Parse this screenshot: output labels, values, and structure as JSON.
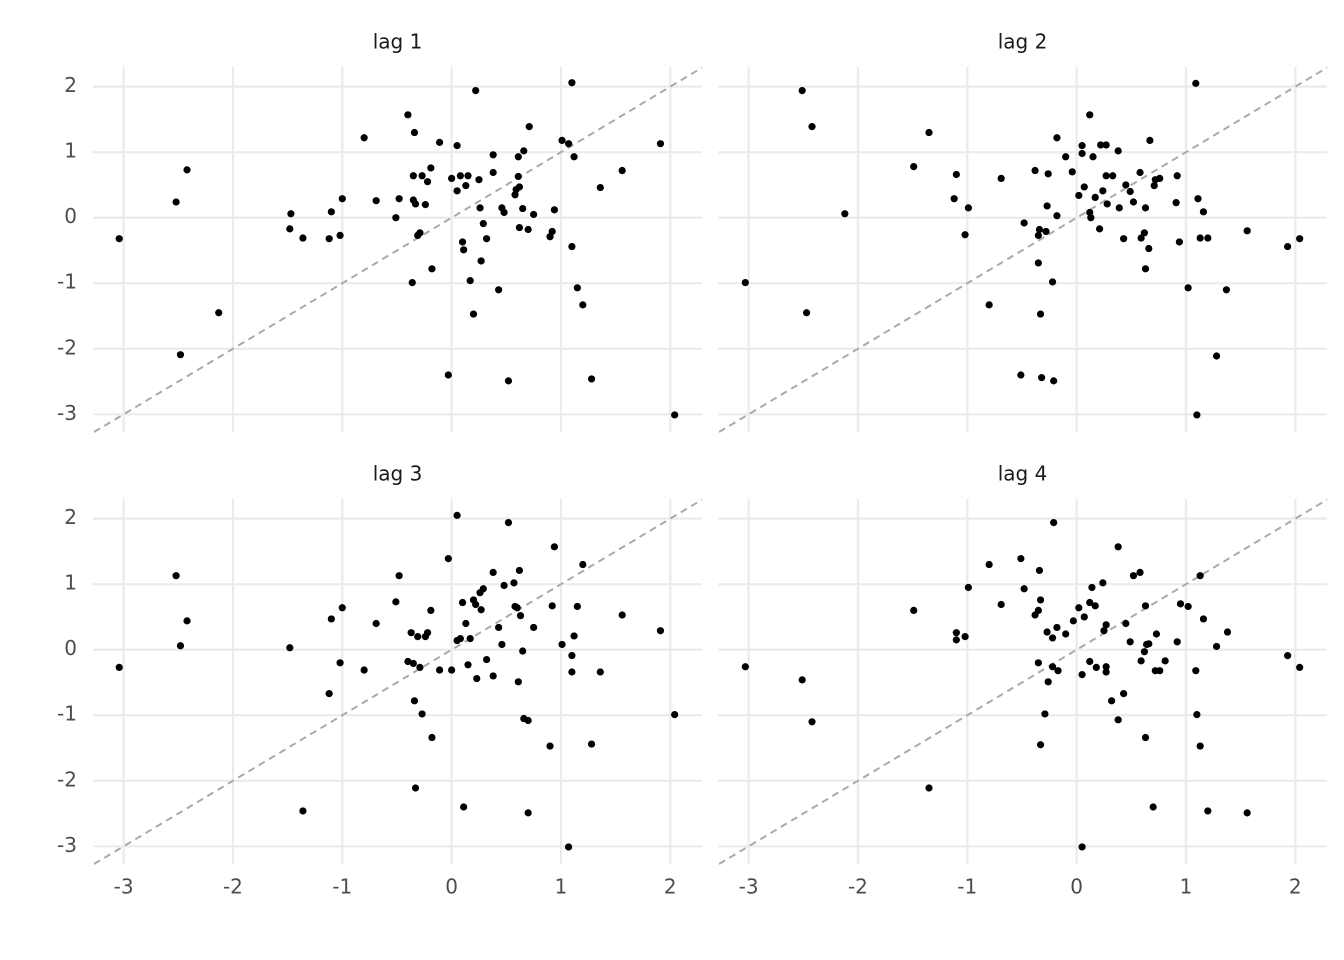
{
  "chart_data": [
    {
      "type": "scatter",
      "title": "lag 1",
      "color": "#000000",
      "grid": true,
      "diagonal": true,
      "xlim": [
        -3.28,
        2.29
      ],
      "ylim": [
        -3.27,
        2.3
      ],
      "xticks": [
        -3,
        -2,
        -1,
        0,
        1,
        2
      ],
      "yticks": [
        -3,
        -2,
        -1,
        0,
        1,
        2
      ],
      "x": [
        -3.04,
        -2.52,
        -2.42,
        -2.48,
        -2.13,
        -1.47,
        -1.48,
        -1.36,
        -1.1,
        -1.12,
        -1.02,
        -1.0,
        -0.8,
        -0.69,
        -0.51,
        -0.48,
        -0.4,
        -0.35,
        -0.34,
        -0.35,
        -0.33,
        -0.36,
        -0.29,
        -0.27,
        -0.31,
        -0.24,
        -0.22,
        -0.19,
        -0.18,
        -0.11,
        -0.03,
        0.0,
        0.05,
        0.05,
        0.08,
        0.13,
        0.15,
        0.1,
        0.11,
        0.17,
        0.2,
        0.22,
        0.25,
        0.26,
        0.29,
        0.27,
        0.32,
        0.38,
        0.38,
        0.43,
        0.46,
        0.48,
        0.52,
        0.58,
        0.59,
        0.61,
        0.61,
        0.62,
        0.62,
        0.66,
        0.65,
        0.7,
        0.71,
        0.75,
        0.9,
        0.92,
        0.94,
        1.01,
        1.07,
        1.1,
        1.1,
        1.12,
        1.15,
        1.2,
        1.28,
        1.36,
        1.56,
        1.91,
        2.04
      ],
      "y": [
        -0.32,
        0.24,
        0.73,
        -2.09,
        -1.45,
        0.06,
        -0.17,
        -0.31,
        0.09,
        -0.32,
        -0.27,
        0.29,
        1.22,
        0.26,
        0.0,
        0.29,
        1.57,
        0.64,
        1.3,
        0.27,
        0.21,
        -0.99,
        -0.23,
        0.64,
        -0.27,
        0.2,
        0.55,
        0.76,
        -0.78,
        1.15,
        -2.4,
        0.6,
        0.41,
        1.1,
        0.64,
        0.49,
        0.64,
        -0.37,
        -0.49,
        -0.96,
        -1.47,
        1.94,
        0.58,
        0.15,
        -0.09,
        -0.66,
        -0.32,
        0.69,
        0.96,
        -1.1,
        0.15,
        0.08,
        -2.49,
        0.35,
        0.43,
        0.93,
        0.63,
        0.47,
        -0.15,
        1.02,
        0.14,
        -0.18,
        1.39,
        0.05,
        -0.29,
        -0.21,
        0.12,
        1.18,
        1.13,
        2.06,
        -0.44,
        0.93,
        -1.07,
        -1.33,
        -2.46,
        0.46,
        0.72,
        1.13,
        -3.01
      ]
    },
    {
      "type": "scatter",
      "title": "lag 2",
      "color": "#000000",
      "grid": true,
      "diagonal": true,
      "xlim": [
        -3.28,
        2.29
      ],
      "ylim": [
        -3.27,
        2.3
      ],
      "xticks": [
        -3,
        -2,
        -1,
        0,
        1,
        2
      ],
      "yticks": [
        -3,
        -2,
        -1,
        0,
        1,
        2
      ],
      "x": [
        -3.03,
        -2.51,
        -2.42,
        -2.47,
        -2.12,
        -1.49,
        -1.35,
        -1.1,
        -1.12,
        -0.99,
        -1.02,
        -0.8,
        -0.69,
        -0.51,
        -0.48,
        -0.38,
        -0.35,
        -0.34,
        -0.33,
        -0.35,
        -0.32,
        -0.28,
        -0.27,
        -0.26,
        -0.22,
        -0.21,
        -0.18,
        -0.18,
        -0.1,
        -0.04,
        0.02,
        0.05,
        0.05,
        0.07,
        0.12,
        0.12,
        0.13,
        0.15,
        0.17,
        0.21,
        0.22,
        0.24,
        0.27,
        0.27,
        0.28,
        0.33,
        0.38,
        0.39,
        0.43,
        0.45,
        0.49,
        0.52,
        0.58,
        0.59,
        0.62,
        0.63,
        0.63,
        0.66,
        0.67,
        0.71,
        0.72,
        0.76,
        0.91,
        0.92,
        0.94,
        1.02,
        1.09,
        1.11,
        1.1,
        1.13,
        1.16,
        1.2,
        1.28,
        1.37,
        1.56,
        1.93,
        2.04
      ],
      "y": [
        -0.99,
        1.94,
        1.39,
        -1.45,
        0.06,
        0.78,
        1.3,
        0.66,
        0.29,
        0.15,
        -0.26,
        -1.33,
        0.6,
        -2.4,
        -0.08,
        0.72,
        -0.69,
        -0.18,
        -1.47,
        -0.27,
        -2.44,
        -0.21,
        0.18,
        0.67,
        -0.98,
        -2.49,
        0.03,
        1.22,
        0.93,
        0.7,
        0.34,
        0.98,
        1.1,
        0.47,
        1.57,
        0.08,
        0.0,
        0.93,
        0.31,
        -0.17,
        1.11,
        0.41,
        0.64,
        1.11,
        0.21,
        0.64,
        1.02,
        0.15,
        -0.32,
        0.5,
        0.4,
        0.24,
        0.69,
        -0.31,
        -0.23,
        0.15,
        -0.78,
        -0.47,
        1.18,
        0.49,
        0.58,
        0.6,
        0.23,
        0.64,
        -0.37,
        -1.07,
        2.05,
        0.29,
        -3.01,
        -0.31,
        0.09,
        -0.31,
        -2.11,
        -1.1,
        -0.2,
        -0.44,
        -0.32
      ]
    },
    {
      "type": "scatter",
      "title": "lag 3",
      "color": "#000000",
      "grid": true,
      "diagonal": true,
      "xlim": [
        -3.28,
        2.29
      ],
      "ylim": [
        -3.27,
        2.3
      ],
      "xticks": [
        -3,
        -2,
        -1,
        0,
        1,
        2
      ],
      "yticks": [
        -3,
        -2,
        -1,
        0,
        1,
        2
      ],
      "x": [
        -3.04,
        -2.52,
        -2.48,
        -2.42,
        -1.48,
        -1.36,
        -1.1,
        -1.12,
        -1.02,
        -1.0,
        -0.8,
        -0.69,
        -0.51,
        -0.48,
        -0.4,
        -0.37,
        -0.35,
        -0.34,
        -0.33,
        -0.31,
        -0.29,
        -0.27,
        -0.24,
        -0.22,
        -0.19,
        -0.18,
        -0.11,
        -0.03,
        0.0,
        0.05,
        0.05,
        0.08,
        0.1,
        0.11,
        0.13,
        0.15,
        0.17,
        0.2,
        0.22,
        0.23,
        0.26,
        0.27,
        0.29,
        0.32,
        0.38,
        0.38,
        0.43,
        0.46,
        0.48,
        0.52,
        0.57,
        0.58,
        0.6,
        0.61,
        0.62,
        0.63,
        0.65,
        0.66,
        0.7,
        0.7,
        0.75,
        0.9,
        0.92,
        0.94,
        1.01,
        1.07,
        1.1,
        1.1,
        1.12,
        1.15,
        1.2,
        1.28,
        1.36,
        1.56,
        1.91,
        2.04
      ],
      "y": [
        -0.27,
        1.13,
        0.06,
        0.44,
        0.03,
        -2.46,
        0.47,
        -0.67,
        -0.2,
        0.64,
        -0.31,
        0.4,
        0.73,
        1.13,
        -0.18,
        0.26,
        -0.21,
        -0.78,
        -2.11,
        0.2,
        -0.27,
        -0.98,
        0.2,
        0.26,
        0.6,
        -1.34,
        -0.31,
        1.39,
        -0.31,
        2.05,
        0.14,
        0.17,
        0.72,
        -2.4,
        0.4,
        -0.23,
        0.17,
        0.76,
        0.69,
        -0.44,
        0.87,
        0.61,
        0.93,
        -0.15,
        1.18,
        -0.4,
        0.34,
        0.08,
        0.98,
        1.94,
        1.02,
        0.66,
        0.64,
        -0.49,
        1.21,
        0.52,
        -0.02,
        -1.05,
        -1.08,
        -2.49,
        0.34,
        -1.47,
        0.67,
        1.57,
        0.08,
        -3.01,
        -0.09,
        -0.34,
        0.21,
        0.66,
        1.3,
        -1.44,
        -0.34,
        0.53,
        0.29,
        -0.99
      ]
    },
    {
      "type": "scatter",
      "title": "lag 4",
      "color": "#000000",
      "grid": true,
      "diagonal": true,
      "xlim": [
        -3.28,
        2.29
      ],
      "ylim": [
        -3.27,
        2.3
      ],
      "xticks": [
        -3,
        -2,
        -1,
        0,
        1,
        2
      ],
      "yticks": [
        -3,
        -2,
        -1,
        0,
        1,
        2
      ],
      "x": [
        -3.03,
        -2.51,
        -2.42,
        -1.49,
        -1.35,
        -1.1,
        -1.1,
        -1.02,
        -0.99,
        -0.8,
        -0.69,
        -0.51,
        -0.48,
        -0.38,
        -0.35,
        -0.35,
        -0.34,
        -0.33,
        -0.33,
        -0.29,
        -0.27,
        -0.26,
        -0.22,
        -0.22,
        -0.21,
        -0.18,
        -0.17,
        -0.1,
        -0.03,
        0.02,
        0.05,
        0.05,
        0.07,
        0.12,
        0.12,
        0.14,
        0.17,
        0.18,
        0.24,
        0.25,
        0.27,
        0.27,
        0.27,
        0.32,
        0.38,
        0.38,
        0.43,
        0.45,
        0.49,
        0.52,
        0.58,
        0.59,
        0.62,
        0.63,
        0.63,
        0.64,
        0.66,
        0.7,
        0.72,
        0.73,
        0.76,
        0.81,
        0.92,
        0.95,
        1.02,
        1.09,
        1.1,
        1.13,
        1.13,
        1.16,
        1.2,
        1.28,
        1.38,
        1.56,
        1.93,
        2.04
      ],
      "y": [
        -0.26,
        -0.46,
        -1.1,
        0.6,
        -2.11,
        0.26,
        0.15,
        0.2,
        0.95,
        1.3,
        0.69,
        1.39,
        0.93,
        0.53,
        0.6,
        -0.2,
        1.21,
        0.76,
        -1.45,
        -0.98,
        0.27,
        -0.49,
        -0.26,
        0.18,
        1.94,
        0.34,
        -0.32,
        0.24,
        0.44,
        0.64,
        -0.38,
        -3.01,
        0.5,
        0.72,
        -0.18,
        0.95,
        0.67,
        -0.27,
        1.02,
        0.29,
        0.38,
        -0.26,
        -0.34,
        -0.78,
        1.57,
        -1.07,
        -0.67,
        0.4,
        0.12,
        1.13,
        1.18,
        -0.17,
        -0.03,
        0.67,
        -1.34,
        0.08,
        0.09,
        -2.4,
        -0.32,
        0.24,
        -0.32,
        -0.17,
        0.12,
        0.7,
        0.66,
        -0.32,
        -0.99,
        1.13,
        -1.47,
        0.47,
        -2.46,
        0.05,
        0.27,
        -2.49,
        -0.09,
        -0.27
      ]
    }
  ]
}
